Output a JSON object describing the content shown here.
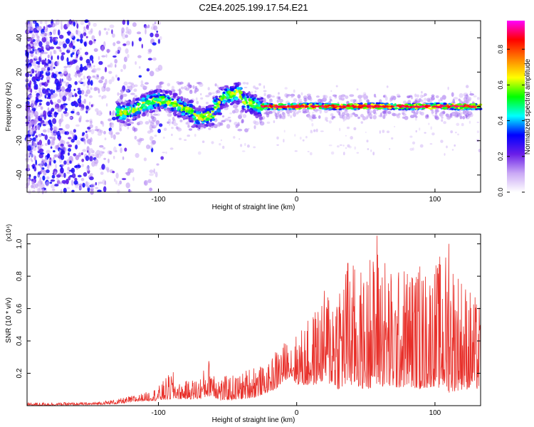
{
  "title": "C2E4.2025.199.17.54.E21",
  "colors": {
    "snr_line": "#e8302a",
    "noise": "#7b2cf0",
    "signal_core": "#ff2020",
    "signal_mid": "#22d3d0",
    "signal_outer": "#3a10e0"
  },
  "chart_data": [
    {
      "type": "heatmap",
      "title": "",
      "xlabel": "Height of straight line (km)",
      "ylabel": "Frequency (Hz)",
      "xlim": [
        -195,
        133
      ],
      "ylim": [
        -50,
        50
      ],
      "xticks": [
        -100,
        0,
        100
      ],
      "yticks": [
        40,
        20,
        0,
        -20,
        -40
      ],
      "colorbar": {
        "label": "Normalized spectral amplitude",
        "range": [
          0,
          1
        ],
        "ticks": [
          "0.0",
          "0.2",
          "0.4",
          "0.6",
          "0.8"
        ],
        "colormap": [
          "#ffffff",
          "#c9a8f5",
          "#6a1ee8",
          "#0000ff",
          "#00ffff",
          "#00ff00",
          "#ffff00",
          "#ff8000",
          "#ff0000",
          "#ff00ff"
        ]
      },
      "regions": [
        {
          "name": "noise",
          "x": [
            -195,
            -105
          ],
          "y": [
            -50,
            50
          ],
          "amplitude": [
            0.05,
            0.35
          ]
        },
        {
          "name": "onset",
          "x": [
            -130,
            -25
          ],
          "y": [
            -12,
            10
          ],
          "amplitude": [
            0.2,
            0.6
          ]
        },
        {
          "name": "carrier",
          "x": [
            -25,
            133
          ],
          "y": [
            -2,
            2
          ],
          "amplitude": [
            0.5,
            0.95
          ]
        }
      ]
    },
    {
      "type": "line",
      "title": "",
      "xlabel": "Height of straight line (km)",
      "ylabel": "SNR (10 * v/v)",
      "y_multiplier": "(x10⁴)",
      "xlim": [
        -195,
        133
      ],
      "ylim": [
        0,
        1.06
      ],
      "xticks": [
        -100,
        0,
        100
      ],
      "yticks": [
        0.2,
        0.4,
        0.6,
        0.8,
        1.0
      ],
      "ytick_labels": [
        "0.2",
        "0.4",
        "0.6",
        "0.8",
        "1.0"
      ],
      "envelope": {
        "x": [
          -195,
          -150,
          -130,
          -110,
          -100,
          -90,
          -85,
          -70,
          -62,
          -55,
          -40,
          -30,
          -22,
          -15,
          -5,
          0,
          10,
          20,
          30,
          40,
          50,
          60,
          70,
          80,
          90,
          100,
          110,
          120,
          133
        ],
        "base": [
          0.0,
          0.005,
          0.01,
          0.03,
          0.03,
          0.04,
          0.04,
          0.04,
          0.06,
          0.03,
          0.04,
          0.05,
          0.08,
          0.1,
          0.18,
          0.13,
          0.12,
          0.15,
          0.1,
          0.12,
          0.1,
          0.12,
          0.1,
          0.12,
          0.1,
          0.12,
          0.08,
          0.1,
          0.1
        ],
        "peak": [
          0.02,
          0.02,
          0.04,
          0.08,
          0.12,
          0.22,
          0.14,
          0.18,
          0.32,
          0.18,
          0.2,
          0.28,
          0.22,
          0.36,
          0.42,
          0.45,
          0.55,
          0.72,
          0.88,
          0.9,
          0.82,
          1.05,
          0.82,
          0.9,
          0.85,
          0.9,
          1.0,
          0.82,
          0.62
        ]
      },
      "notable_peaks": [
        {
          "x": 58,
          "y": 1.05
        },
        {
          "x": 110,
          "y": 1.0
        },
        {
          "x": 53,
          "y": 0.9
        },
        {
          "x": 37,
          "y": 0.88
        },
        {
          "x": 89,
          "y": 0.86
        }
      ]
    }
  ]
}
